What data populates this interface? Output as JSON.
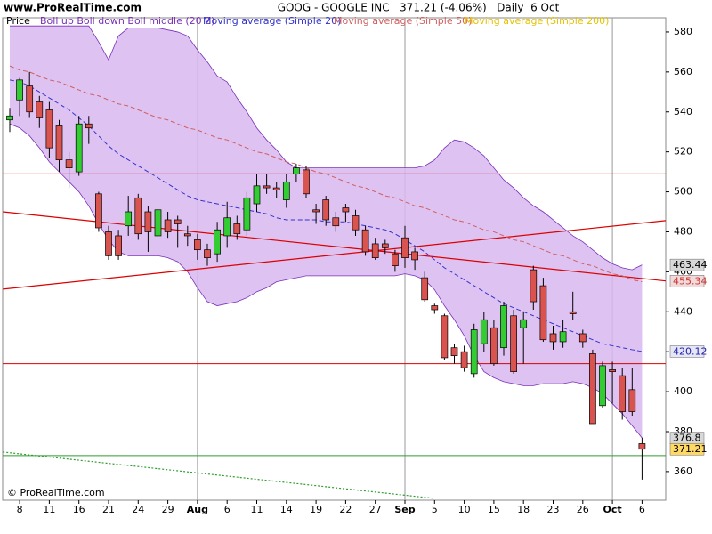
{
  "chart_data": {
    "type": "candlestick",
    "site": "www.ProRealTime.com",
    "title": "GOOG - GOOGLE INC   371.21 (-4.06%)   Daily  6 Oct",
    "copyright": "© ProRealTime.com",
    "price_label": "Price",
    "categories": [
      null,
      "8",
      null,
      null,
      "11",
      null,
      null,
      "16",
      null,
      null,
      "21",
      null,
      null,
      "24",
      null,
      null,
      "29",
      null,
      null,
      "Aug",
      null,
      null,
      "6",
      null,
      null,
      "11",
      null,
      null,
      "14",
      null,
      null,
      "19",
      null,
      null,
      "22",
      null,
      null,
      "27",
      null,
      null,
      "Sep",
      null,
      null,
      "5",
      null,
      null,
      "10",
      null,
      null,
      "15",
      null,
      null,
      "18",
      null,
      null,
      "23",
      null,
      null,
      "26",
      null,
      null,
      "Oct",
      null,
      null,
      "6"
    ],
    "open": [
      536,
      546,
      553,
      545,
      541,
      533,
      516,
      510,
      534,
      499,
      480,
      478,
      483,
      497,
      490,
      478,
      486,
      486,
      479,
      476,
      471,
      469,
      478,
      484,
      481,
      494,
      503,
      502,
      496,
      509,
      511,
      491,
      496,
      487,
      492,
      488,
      481,
      474,
      474,
      469,
      477,
      470,
      457,
      443,
      438,
      422,
      420,
      409,
      424,
      432,
      422,
      438,
      432,
      461,
      453,
      429,
      425,
      440,
      429,
      419,
      393,
      411,
      408,
      401,
      374
    ],
    "high": [
      542,
      557,
      560,
      548,
      545,
      536,
      520,
      538,
      538,
      500,
      483,
      481,
      498,
      499,
      493,
      496,
      490,
      488,
      483,
      479,
      474,
      485,
      495,
      488,
      500,
      509,
      509,
      505,
      509,
      514,
      513,
      494,
      498,
      490,
      494,
      491,
      483,
      477,
      476,
      471,
      483,
      472,
      460,
      444,
      439,
      424,
      423,
      434,
      440,
      436,
      445,
      441,
      440,
      463,
      457,
      433,
      436,
      450,
      431,
      421,
      415,
      415,
      412,
      412,
      377
    ],
    "low": [
      530,
      538,
      537,
      532,
      517,
      510,
      502,
      508,
      524,
      480,
      466,
      466,
      478,
      476,
      470,
      476,
      477,
      472,
      473,
      466,
      463,
      465,
      472,
      476,
      478,
      490,
      499,
      497,
      492,
      505,
      497,
      484,
      483,
      480,
      485,
      478,
      468,
      466,
      469,
      460,
      462,
      461,
      445,
      439,
      416,
      414,
      410,
      407,
      420,
      413,
      418,
      409,
      414,
      441,
      425,
      421,
      422,
      436,
      422,
      384,
      392,
      394,
      386,
      388,
      356
    ],
    "close": [
      538,
      556,
      540,
      537,
      522,
      516,
      512,
      534,
      532,
      482,
      468,
      468,
      490,
      479,
      480,
      491,
      480,
      484,
      478,
      471,
      467,
      481,
      487,
      479,
      497,
      503,
      502,
      501,
      505,
      512,
      499,
      490,
      486,
      483,
      490,
      481,
      470,
      467,
      472,
      463,
      467,
      466,
      446,
      441,
      417,
      418,
      412,
      431,
      436,
      414,
      443,
      410,
      436,
      445,
      426,
      425,
      430,
      439,
      425,
      384,
      413,
      410,
      390,
      390,
      371.21
    ],
    "up_color": "#33cc33",
    "down_color": "#d9534f",
    "series": [
      {
        "name": "Boll up Boll down Boll middle (20 2)",
        "color": "#7a2fb8",
        "fill": "#d8b8f0",
        "upper": [
          583,
          583,
          583,
          583,
          583,
          583,
          583,
          583,
          583,
          575,
          566,
          578,
          582,
          582,
          582,
          582,
          581,
          580,
          578,
          571,
          565,
          558,
          555,
          547,
          540,
          532,
          526,
          521,
          515,
          512,
          512,
          512,
          512,
          512,
          512,
          512,
          512,
          512,
          512,
          512,
          512,
          512,
          513,
          516,
          522,
          526,
          525,
          522,
          518,
          512,
          506,
          502,
          497,
          493,
          490,
          486,
          482,
          478,
          475,
          471,
          467,
          464,
          462,
          461,
          463.44
        ],
        "lower": [
          534,
          532,
          528,
          522,
          515,
          510,
          505,
          500,
          493,
          484,
          476,
          470,
          468,
          468,
          468,
          468,
          467,
          465,
          460,
          452,
          445,
          443,
          444,
          445,
          447,
          450,
          452,
          455,
          456,
          457,
          458,
          458,
          458,
          458,
          458,
          458,
          458,
          458,
          458,
          458,
          459,
          458,
          456,
          451,
          443,
          436,
          428,
          418,
          410,
          407,
          405,
          404,
          403,
          403,
          404,
          404,
          404,
          405,
          404,
          402,
          399,
          394,
          389,
          383,
          376.8
        ]
      },
      {
        "name": "Moving average (Simple 20)",
        "color": "#3333cc",
        "values": [
          556,
          555,
          553,
          550,
          547,
          544,
          541,
          537,
          533,
          528,
          523,
          519,
          516,
          513,
          510,
          507,
          504,
          501,
          498,
          496,
          495,
          494,
          493,
          492,
          491,
          490,
          489,
          487,
          486,
          486,
          486,
          486,
          485,
          485,
          485,
          484,
          483,
          482,
          481,
          479,
          476,
          473,
          470,
          466,
          462,
          459,
          456,
          453,
          450,
          447,
          444,
          442,
          440,
          438,
          436,
          434,
          432,
          430,
          428,
          426,
          424,
          423,
          422,
          421,
          420.12
        ]
      },
      {
        "name": "Moving average (Simple 50)",
        "color": "#d06060",
        "values": [
          563,
          561,
          560,
          558,
          556,
          555,
          553,
          551,
          549,
          548,
          546,
          544,
          543,
          541,
          539,
          537,
          536,
          534,
          532,
          531,
          529,
          527,
          526,
          524,
          522,
          520,
          519,
          517,
          515,
          514,
          512,
          510,
          509,
          507,
          505,
          503,
          502,
          500,
          498,
          497,
          495,
          493,
          492,
          490,
          488,
          486,
          485,
          483,
          481,
          480,
          478,
          476,
          475,
          473,
          471,
          469,
          468,
          466,
          464,
          463,
          461,
          459,
          458,
          456,
          455
        ]
      },
      {
        "name": "Moving average (Simple 200)",
        "color": "#e6c200"
      }
    ],
    "hlines": [
      {
        "value": 509,
        "color": "#dd0000"
      },
      {
        "value": 414,
        "color": "#dd0000"
      },
      {
        "value": 368,
        "color": "#2e9e2e"
      }
    ],
    "trendlines": [
      {
        "from": [
          -0.7,
          490
        ],
        "to": [
          66.4,
          455.4
        ],
        "color": "#dd0000",
        "dashed": false
      },
      {
        "from": [
          -0.7,
          451.3
        ],
        "to": [
          66.4,
          485.6
        ],
        "color": "#dd0000",
        "dashed": false
      },
      {
        "from": [
          -0.7,
          369.8
        ],
        "to": [
          43,
          346.6
        ],
        "color": "#2e9e2e",
        "dashed": true
      }
    ],
    "separators": [
      19,
      40,
      61
    ],
    "price_tags": [
      {
        "value": 463.44,
        "color": "#000000",
        "bg": "#d8d8d8"
      },
      {
        "value": 455.34,
        "color": "#cc3333",
        "bg": "#f0dada"
      },
      {
        "value": 420.12,
        "color": "#2222aa",
        "bg": "#e6e6f6"
      },
      {
        "value": 376.8,
        "color": "#000000",
        "bg": "#d8d8d8"
      },
      {
        "value": 371.21,
        "color": "#000000",
        "bg": "#ffd966"
      }
    ],
    "ylim": [
      345.7,
      587.1
    ],
    "yticks": [
      360,
      380,
      400,
      420,
      440,
      460,
      480,
      500,
      520,
      540,
      560,
      580
    ]
  }
}
